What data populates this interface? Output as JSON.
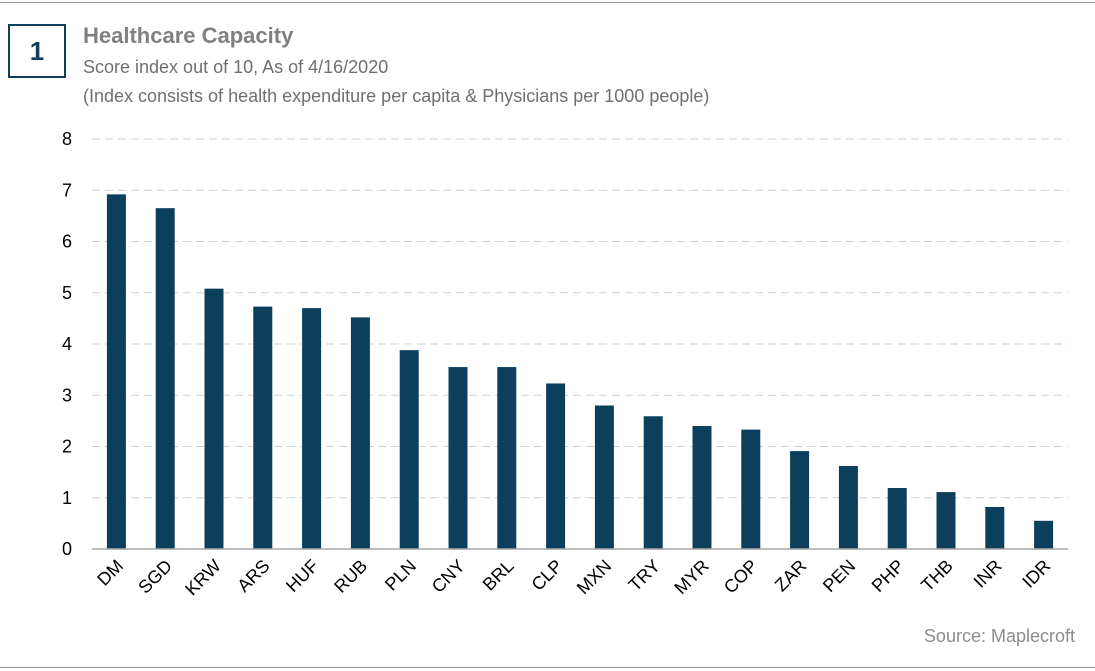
{
  "badge": "1",
  "chart_data": {
    "type": "bar",
    "title": "Healthcare Capacity",
    "subtitle": "Score index out of 10, As of 4/16/2020",
    "subtitle2": "(Index consists of health expenditure per capita & Physicians per 1000 people)",
    "source": "Source: Maplecroft",
    "categories": [
      "DM",
      "SGD",
      "KRW",
      "ARS",
      "HUF",
      "RUB",
      "PLN",
      "CNY",
      "BRL",
      "CLP",
      "MXN",
      "TRY",
      "MYR",
      "COP",
      "ZAR",
      "PEN",
      "PHP",
      "THB",
      "INR",
      "IDR"
    ],
    "values": [
      6.92,
      6.65,
      5.08,
      4.73,
      4.7,
      4.52,
      3.88,
      3.55,
      3.55,
      3.23,
      2.8,
      2.59,
      2.4,
      2.33,
      1.91,
      1.62,
      1.19,
      1.11,
      0.82,
      0.55
    ],
    "ylim": [
      0,
      8
    ],
    "yticks": [
      0,
      1,
      2,
      3,
      4,
      5,
      6,
      7,
      8
    ],
    "grid": true,
    "bar_color": "#0c3f5b",
    "grid_color": "#cfcfcf"
  }
}
